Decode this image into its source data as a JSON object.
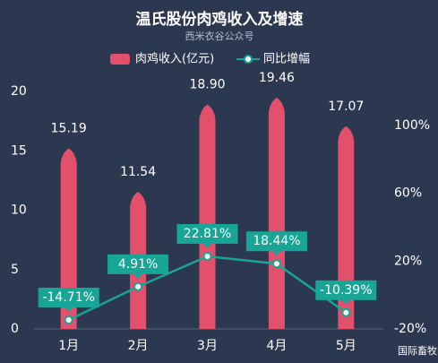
{
  "chart_data": {
    "type": "bar-line",
    "title": "温氏股份肉鸡收入及增速",
    "subtitle": "西米衣谷公众号",
    "watermark": "国际畜牧网",
    "categories": [
      "1月",
      "2月",
      "3月",
      "4月",
      "5月"
    ],
    "series": [
      {
        "name": "肉鸡收入(亿元)",
        "type": "bar",
        "color": "#e2506c",
        "values": [
          15.19,
          11.54,
          18.9,
          19.46,
          17.07
        ],
        "value_labels": [
          "15.19",
          "11.54",
          "18.90",
          "19.46",
          "17.07"
        ]
      },
      {
        "name": "同比增幅",
        "type": "line",
        "axis": "y2",
        "color": "#17a596",
        "values": [
          -14.71,
          4.91,
          22.81,
          18.44,
          -10.39
        ],
        "value_labels": [
          "-14.71%",
          "4.91%",
          "22.81%",
          "18.44%",
          "-10.39%"
        ]
      }
    ],
    "ylim": [
      0,
      20
    ],
    "yticks": [
      0,
      5,
      10,
      15,
      20
    ],
    "y2lim": [
      -20,
      120
    ],
    "y2ticks": [
      {
        "value": -20,
        "label": "-20%"
      },
      {
        "value": 20,
        "label": "20%"
      },
      {
        "value": 60,
        "label": "60%"
      },
      {
        "value": 100,
        "label": "100%"
      }
    ],
    "grid": false
  }
}
